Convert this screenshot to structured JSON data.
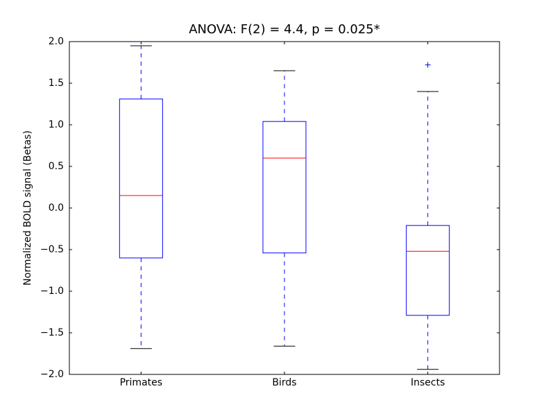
{
  "chart_data": {
    "type": "box",
    "title": "ANOVA: F(2) = 4.4, p = 0.025*",
    "y_label": "Normalized BOLD signal (Betas)",
    "categories": [
      "Primates",
      "Birds",
      "Insects"
    ],
    "boxes": [
      {
        "whislo": -1.69,
        "q1": -0.6,
        "med": 0.15,
        "q3": 1.31,
        "whishi": 1.95,
        "fliers": []
      },
      {
        "whislo": -1.66,
        "q1": -0.54,
        "med": 0.6,
        "q3": 1.04,
        "whishi": 1.65,
        "fliers": []
      },
      {
        "whislo": -1.94,
        "q1": -1.29,
        "med": -0.52,
        "q3": -0.21,
        "whishi": 1.4,
        "fliers": [
          1.72
        ]
      }
    ],
    "box_color": "#0000ff",
    "median_color": "#ff0000",
    "cap_color": "#000000",
    "ylim": [
      -2,
      2
    ],
    "yticks": [
      {
        "value": -2,
        "label": "−2.0"
      },
      {
        "value": -1.5,
        "label": "−1.5"
      },
      {
        "value": -1,
        "label": "−1.0"
      },
      {
        "value": -0.5,
        "label": "−0.5"
      },
      {
        "value": 0,
        "label": "0.0"
      },
      0.5,
      {
        "value": 1,
        "label": "1.0"
      },
      1.5,
      {
        "value": 2,
        "label": "2.0"
      }
    ],
    "grid": false
  }
}
